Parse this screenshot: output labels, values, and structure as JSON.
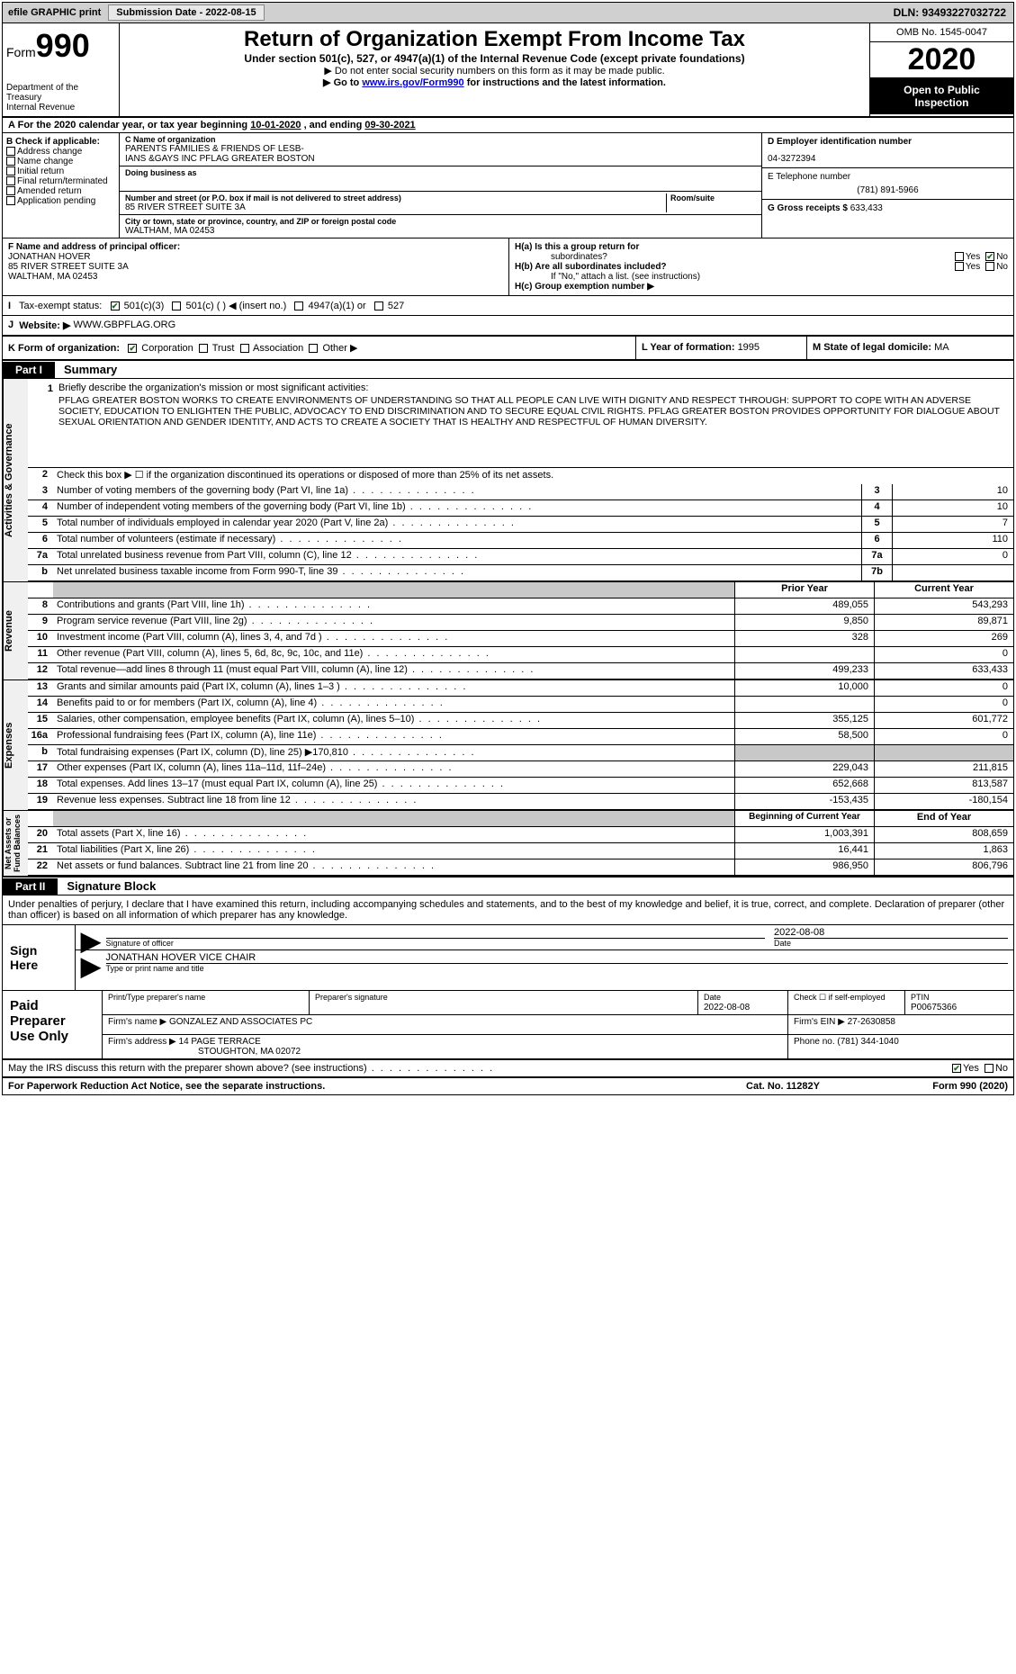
{
  "topbar": {
    "efile_label": "efile GRAPHIC print",
    "submission_label": "Submission Date - 2022-08-15",
    "dln_label": "DLN: 93493227032722"
  },
  "header": {
    "form_prefix": "Form",
    "form_number": "990",
    "dept": "Department of the Treasury\nInternal Revenue",
    "title": "Return of Organization Exempt From Income Tax",
    "subtitle": "Under section 501(c), 527, or 4947(a)(1) of the Internal Revenue Code (except private foundations)",
    "note1": "▶ Do not enter social security numbers on this form as it may be made public.",
    "note2_pre": "▶ Go to ",
    "note2_link": "www.irs.gov/Form990",
    "note2_post": " for instructions and the latest information.",
    "omb": "OMB No. 1545-0047",
    "year": "2020",
    "open_pub": "Open to Public\nInspection"
  },
  "rowA": {
    "prefix": "A",
    "text_pre": "For the 2020 calendar year, or tax year beginning ",
    "begin": "10-01-2020",
    "mid": " , and ending ",
    "end": "09-30-2021"
  },
  "colB": {
    "label": "B Check if applicable:",
    "items": [
      "Address change",
      "Name change",
      "Initial return",
      "Final return/terminated",
      "Amended return",
      "Application pending"
    ]
  },
  "colC": {
    "name_label": "C Name of organization",
    "name": "PARENTS FAMILIES & FRIENDS OF LESB-\nIANS &GAYS INC PFLAG GREATER BOSTON",
    "dba_label": "Doing business as",
    "dba": "",
    "street_label": "Number and street (or P.O. box if mail is not delivered to street address)",
    "street": "85 RIVER STREET SUITE 3A",
    "room_label": "Room/suite",
    "city_label": "City or town, state or province, country, and ZIP or foreign postal code",
    "city": "WALTHAM, MA  02453"
  },
  "colD": {
    "ein_label": "D Employer identification number",
    "ein": "04-3272394",
    "phone_label": "E Telephone number",
    "phone": "(781) 891-5966",
    "gross_label": "G Gross receipts $ ",
    "gross": "633,433"
  },
  "fgh": {
    "f_label": "F Name and address of principal officer:",
    "f_name": "JONATHAN HOVER",
    "f_addr1": "85 RIVER STREET SUITE 3A",
    "f_addr2": "WALTHAM, MA  02453",
    "ha_label": "H(a)  Is this a group return for",
    "ha_sub": "subordinates?",
    "hb_label": "H(b)  Are all subordinates included?",
    "hb_note": "If \"No,\" attach a list. (see instructions)",
    "hc_label": "H(c)  Group exemption number ▶",
    "yes": "Yes",
    "no": "No"
  },
  "taxStatus": {
    "i_label": "I",
    "label": "Tax-exempt status:",
    "opts": [
      "501(c)(3)",
      "501(c) (   ) ◀ (insert no.)",
      "4947(a)(1) or",
      "527"
    ]
  },
  "website": {
    "j_label": "J",
    "label": "Website: ▶",
    "value": "WWW.GBPFLAG.ORG"
  },
  "rowK": {
    "label": "K Form of organization:",
    "opts": [
      "Corporation",
      "Trust",
      "Association",
      "Other ▶"
    ],
    "l_label": "L Year of formation: ",
    "l_val": "1995",
    "m_label": "M State of legal domicile: ",
    "m_val": "MA"
  },
  "part1": {
    "tag": "Part I",
    "title": "Summary",
    "side_act": "Activities & Governance",
    "side_rev": "Revenue",
    "side_exp": "Expenses",
    "side_net": "Net Assets or\nFund Balances",
    "mission_label": "Briefly describe the organization's mission or most significant activities:",
    "mission": "PFLAG GREATER BOSTON WORKS TO CREATE ENVIRONMENTS OF UNDERSTANDING SO THAT ALL PEOPLE CAN LIVE WITH DIGNITY AND RESPECT THROUGH: SUPPORT TO COPE WITH AN ADVERSE SOCIETY, EDUCATION TO ENLIGHTEN THE PUBLIC, ADVOCACY TO END DISCRIMINATION AND TO SECURE EQUAL CIVIL RIGHTS. PFLAG GREATER BOSTON PROVIDES OPPORTUNITY FOR DIALOGUE ABOUT SEXUAL ORIENTATION AND GENDER IDENTITY, AND ACTS TO CREATE A SOCIETY THAT IS HEALTHY AND RESPECTFUL OF HUMAN DIVERSITY.",
    "line2": "Check this box ▶ ☐  if the organization discontinued its operations or disposed of more than 25% of its net assets.",
    "lines_gov": [
      {
        "n": "3",
        "desc": "Number of voting members of the governing body (Part VI, line 1a)",
        "box": "3",
        "val": "10"
      },
      {
        "n": "4",
        "desc": "Number of independent voting members of the governing body (Part VI, line 1b)",
        "box": "4",
        "val": "10"
      },
      {
        "n": "5",
        "desc": "Total number of individuals employed in calendar year 2020 (Part V, line 2a)",
        "box": "5",
        "val": "7"
      },
      {
        "n": "6",
        "desc": "Total number of volunteers (estimate if necessary)",
        "box": "6",
        "val": "110"
      },
      {
        "n": "7a",
        "desc": "Total unrelated business revenue from Part VIII, column (C), line 12",
        "box": "7a",
        "val": "0"
      },
      {
        "n": "b",
        "desc": "Net unrelated business taxable income from Form 990-T, line 39",
        "box": "7b",
        "val": ""
      }
    ],
    "prior_hdr": "Prior Year",
    "curr_hdr": "Current Year",
    "lines_rev": [
      {
        "n": "8",
        "desc": "Contributions and grants (Part VIII, line 1h)",
        "p": "489,055",
        "c": "543,293"
      },
      {
        "n": "9",
        "desc": "Program service revenue (Part VIII, line 2g)",
        "p": "9,850",
        "c": "89,871"
      },
      {
        "n": "10",
        "desc": "Investment income (Part VIII, column (A), lines 3, 4, and 7d )",
        "p": "328",
        "c": "269"
      },
      {
        "n": "11",
        "desc": "Other revenue (Part VIII, column (A), lines 5, 6d, 8c, 9c, 10c, and 11e)",
        "p": "",
        "c": "0"
      },
      {
        "n": "12",
        "desc": "Total revenue—add lines 8 through 11 (must equal Part VIII, column (A), line 12)",
        "p": "499,233",
        "c": "633,433"
      }
    ],
    "lines_exp": [
      {
        "n": "13",
        "desc": "Grants and similar amounts paid (Part IX, column (A), lines 1–3 )",
        "p": "10,000",
        "c": "0"
      },
      {
        "n": "14",
        "desc": "Benefits paid to or for members (Part IX, column (A), line 4)",
        "p": "",
        "c": "0"
      },
      {
        "n": "15",
        "desc": "Salaries, other compensation, employee benefits (Part IX, column (A), lines 5–10)",
        "p": "355,125",
        "c": "601,772"
      },
      {
        "n": "16a",
        "desc": "Professional fundraising fees (Part IX, column (A), line 11e)",
        "p": "58,500",
        "c": "0"
      },
      {
        "n": "b",
        "desc": "Total fundraising expenses (Part IX, column (D), line 25) ▶170,810",
        "p": "shaded",
        "c": "shaded"
      },
      {
        "n": "17",
        "desc": "Other expenses (Part IX, column (A), lines 11a–11d, 11f–24e)",
        "p": "229,043",
        "c": "211,815"
      },
      {
        "n": "18",
        "desc": "Total expenses. Add lines 13–17 (must equal Part IX, column (A), line 25)",
        "p": "652,668",
        "c": "813,587"
      },
      {
        "n": "19",
        "desc": "Revenue less expenses. Subtract line 18 from line 12",
        "p": "-153,435",
        "c": "-180,154"
      }
    ],
    "boy_hdr": "Beginning of Current Year",
    "eoy_hdr": "End of Year",
    "lines_net": [
      {
        "n": "20",
        "desc": "Total assets (Part X, line 16)",
        "p": "1,003,391",
        "c": "808,659"
      },
      {
        "n": "21",
        "desc": "Total liabilities (Part X, line 26)",
        "p": "16,441",
        "c": "1,863"
      },
      {
        "n": "22",
        "desc": "Net assets or fund balances. Subtract line 21 from line 20",
        "p": "986,950",
        "c": "806,796"
      }
    ]
  },
  "part2": {
    "tag": "Part II",
    "title": "Signature Block",
    "intro": "Under penalties of perjury, I declare that I have examined this return, including accompanying schedules and statements, and to the best of my knowledge and belief, it is true, correct, and complete. Declaration of preparer (other than officer) is based on all information of which preparer has any knowledge.",
    "sign_here": "Sign\nHere",
    "sig_officer_label": "Signature of officer",
    "sig_date": "2022-08-08",
    "date_label": "Date",
    "officer_name": "JONATHAN HOVER  VICE CHAIR",
    "type_label": "Type or print name and title",
    "paid_prep": "Paid\nPreparer\nUse Only",
    "prep_name_label": "Print/Type preparer's name",
    "prep_sig_label": "Preparer's signature",
    "prep_date_label": "Date",
    "prep_date": "2022-08-08",
    "check_self": "Check ☐ if self-employed",
    "ptin_label": "PTIN",
    "ptin": "P00675366",
    "firm_name_label": "Firm's name    ▶ ",
    "firm_name": "GONZALEZ AND ASSOCIATES PC",
    "firm_ein_label": "Firm's EIN ▶ ",
    "firm_ein": "27-2630858",
    "firm_addr_label": "Firm's address ▶ ",
    "firm_addr1": "14 PAGE TERRACE",
    "firm_addr2": "STOUGHTON, MA  02072",
    "firm_phone_label": "Phone no. ",
    "firm_phone": "(781) 344-1040",
    "discuss": "May the IRS discuss this return with the preparer shown above? (see instructions)",
    "yes": "Yes",
    "no": "No"
  },
  "footer": {
    "left": "For Paperwork Reduction Act Notice, see the separate instructions.",
    "mid": "Cat. No. 11282Y",
    "right": "Form 990 (2020)"
  }
}
